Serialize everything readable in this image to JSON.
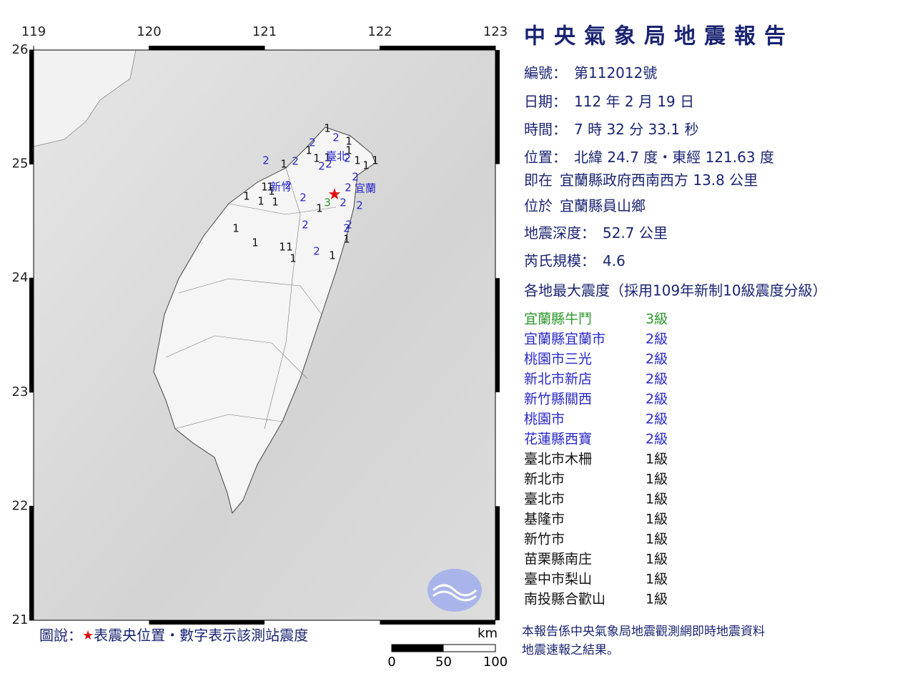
{
  "title": "中央氣象局地震報告",
  "map": {
    "lon_ticks": [
      119,
      120,
      121,
      122,
      123
    ],
    "lat_ticks": [
      26,
      25,
      24,
      23,
      22,
      21
    ],
    "intensity_colors": {
      "1": "#111111",
      "2": "#2828c8",
      "3": "#2a962a"
    },
    "epicenter_color": "#e01010",
    "stations": [
      "1",
      "2",
      "2",
      "1",
      "1",
      "1",
      "2",
      "1",
      "2",
      "1",
      "1",
      "2",
      "1",
      "1",
      "2",
      "2",
      "1",
      "2",
      "1",
      "1",
      "1",
      "2",
      "2",
      "1",
      "1",
      "1",
      "1",
      "3",
      "2",
      "2",
      "2",
      "2",
      "2",
      "2",
      "1",
      "1",
      "1",
      "1",
      "1",
      "1",
      "2",
      "1"
    ],
    "places": [
      "臺北",
      "新竹",
      "宜蘭"
    ]
  },
  "report": [
    {
      "label": "編號：",
      "value": "第112012號"
    },
    {
      "label": "日期：",
      "value": "112 年 2 月 19 日"
    },
    {
      "label": "時間：",
      "value": "7 時 32 分 33.1 秒"
    },
    {
      "label": "位置：",
      "value": "北緯 24.7 度・東經 121.63 度"
    },
    {
      "label": "即在",
      "value": "宜蘭縣政府西南西方 13.8 公里"
    },
    {
      "label": "位於",
      "value": "宜蘭縣員山鄉"
    },
    {
      "label": "地震深度：",
      "value": "52.7 公里"
    },
    {
      "label": "芮氏規模：",
      "value": "4.6"
    }
  ],
  "intensity_heading": "各地最大震度（採用109年新制10級震度分級）",
  "intensity_list": [
    {
      "area": "宜蘭縣牛鬥",
      "level": "3級",
      "color": "#2a962a"
    },
    {
      "area": "宜蘭縣宜蘭市",
      "level": "2級",
      "color": "#2828c8"
    },
    {
      "area": "桃園市三光",
      "level": "2級",
      "color": "#2828c8"
    },
    {
      "area": "新北市新店",
      "level": "2級",
      "color": "#2828c8"
    },
    {
      "area": "新竹縣關西",
      "level": "2級",
      "color": "#2828c8"
    },
    {
      "area": "桃園市",
      "level": "2級",
      "color": "#2828c8"
    },
    {
      "area": "花蓮縣西寶",
      "level": "2級",
      "color": "#2828c8"
    },
    {
      "area": "臺北市木柵",
      "level": "1級",
      "color": "#111111"
    },
    {
      "area": "新北市",
      "level": "1級",
      "color": "#111111"
    },
    {
      "area": "臺北市",
      "level": "1級",
      "color": "#111111"
    },
    {
      "area": "基隆市",
      "level": "1級",
      "color": "#111111"
    },
    {
      "area": "新竹市",
      "level": "1級",
      "color": "#111111"
    },
    {
      "area": "苗栗縣南庄",
      "level": "1級",
      "color": "#111111"
    },
    {
      "area": "臺中市梨山",
      "level": "1級",
      "color": "#111111"
    },
    {
      "area": "南投縣合歡山",
      "level": "1級",
      "color": "#111111"
    }
  ],
  "legend": {
    "prefix": "圖說：",
    "star": "★",
    "text": "表震央位置・數字表示該測站震度"
  },
  "scale": {
    "unit": "km",
    "ticks": [
      0,
      50,
      100
    ]
  },
  "footer": [
    "本報告係中央氣象局地震觀測網即時地震資料",
    "地震速報之結果。"
  ]
}
